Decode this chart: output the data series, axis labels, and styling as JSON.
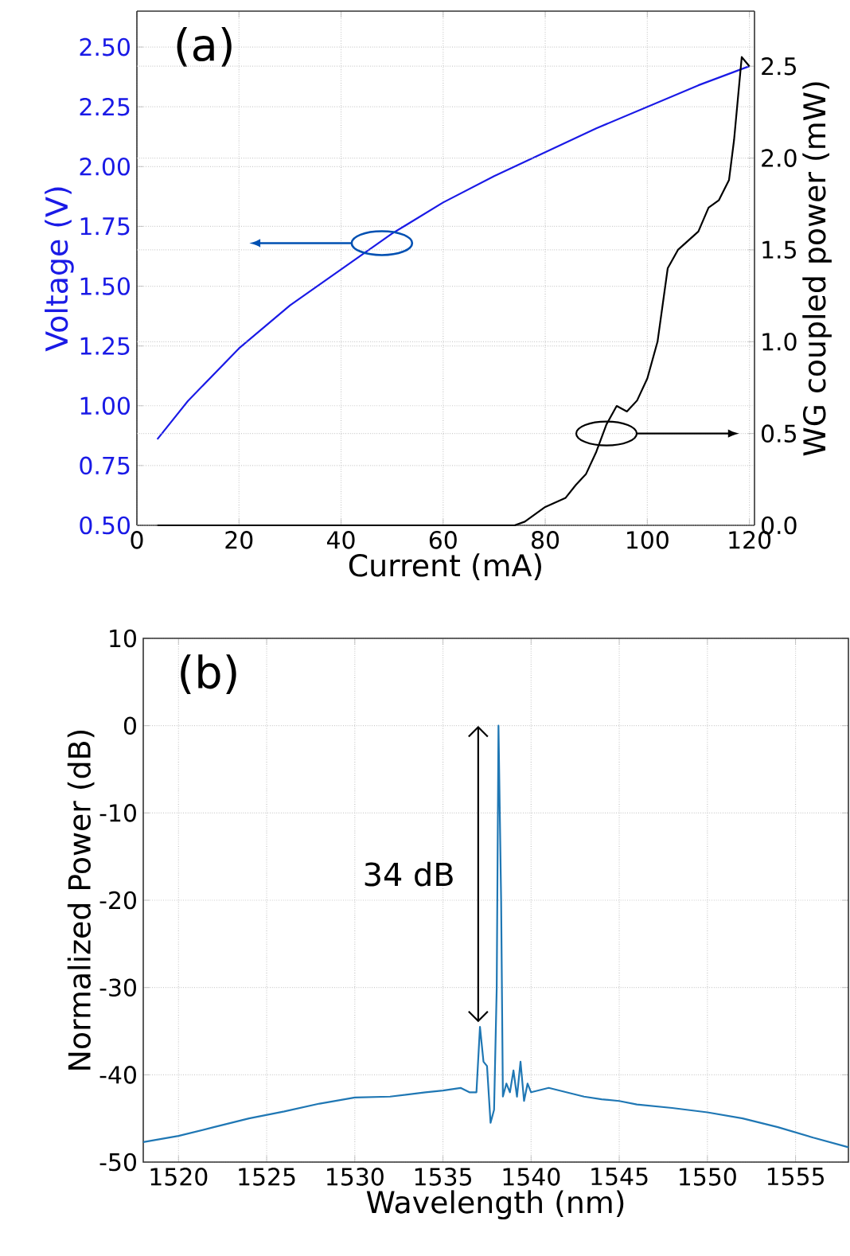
{
  "chart_data": [
    {
      "type": "line",
      "xlabel": "Current (mA)",
      "ylabel": "Voltage (V)",
      "y2label": "WG coupled power (mW)",
      "annotations": [
        "(a)"
      ],
      "grid": true,
      "xlim": [
        0,
        121
      ],
      "xticks": [
        0,
        20,
        40,
        60,
        80,
        100,
        120
      ],
      "ylim": [
        0.5,
        2.65
      ],
      "yticks": [
        {
          "value": 0.5,
          "label": "0.50"
        },
        {
          "value": 0.75,
          "label": "0.75"
        },
        {
          "value": 1.0,
          "label": "1.00"
        },
        {
          "value": 1.25,
          "label": "1.25"
        },
        {
          "value": 1.5,
          "label": "1.50"
        },
        {
          "value": 1.75,
          "label": "1.75"
        },
        {
          "value": 2.0,
          "label": "2.00"
        },
        {
          "value": 2.25,
          "label": "2.25"
        },
        {
          "value": 2.5,
          "label": "2.50"
        }
      ],
      "y2lim": [
        0,
        2.8
      ],
      "y2ticks": [
        {
          "value": 0,
          "label": "0.0"
        },
        {
          "value": 0.5,
          "label": "0.5"
        },
        {
          "value": 1.0,
          "label": "1.0"
        },
        {
          "value": 1.5,
          "label": "1.5"
        },
        {
          "value": 2.0,
          "label": "2.0"
        },
        {
          "value": 2.5,
          "label": "2.5"
        }
      ],
      "series": [
        {
          "color": "#1a1ae6",
          "x": [
            4,
            10,
            20,
            30,
            40,
            50,
            60,
            70,
            80,
            90,
            100,
            110,
            120
          ],
          "values": [
            0.86,
            1.02,
            1.24,
            1.42,
            1.57,
            1.72,
            1.85,
            1.96,
            2.06,
            2.16,
            2.25,
            2.34,
            2.42
          ]
        },
        {
          "color": "#000000",
          "axis": "y2",
          "x": [
            4,
            74,
            76,
            80,
            84,
            86,
            88,
            90,
            92,
            94,
            96,
            98,
            100,
            102,
            104,
            106,
            108,
            110,
            112,
            114,
            116,
            117,
            118.5,
            120
          ],
          "values": [
            0,
            0,
            0.02,
            0.1,
            0.15,
            0.22,
            0.28,
            0.4,
            0.55,
            0.65,
            0.62,
            0.68,
            0.8,
            1.0,
            1.4,
            1.5,
            1.55,
            1.6,
            1.73,
            1.77,
            1.88,
            2.1,
            2.55,
            2.5
          ]
        }
      ]
    },
    {
      "type": "line",
      "xlabel": "Wavelength (nm)",
      "ylabel": "Normalized Power (dB)",
      "annotations": [
        "(b)",
        "34 dB"
      ],
      "grid": true,
      "xlim": [
        1518,
        1558
      ],
      "xticks": [
        1520,
        1525,
        1530,
        1535,
        1540,
        1545,
        1550,
        1555
      ],
      "ylim": [
        -50,
        10
      ],
      "yticks": [
        -50,
        -40,
        -30,
        -20,
        -10,
        0,
        10
      ],
      "series": [
        {
          "color": "#1f77b4",
          "x": [
            1518,
            1520,
            1522,
            1524,
            1526,
            1528,
            1530,
            1532,
            1534,
            1535,
            1536,
            1536.5,
            1536.9,
            1537.1,
            1537.3,
            1537.5,
            1537.7,
            1537.9,
            1538.05,
            1538.15,
            1538.3,
            1538.4,
            1538.6,
            1538.8,
            1539,
            1539.2,
            1539.4,
            1539.6,
            1539.8,
            1540,
            1541,
            1542,
            1543,
            1544,
            1545,
            1546,
            1548,
            1550,
            1552,
            1554,
            1556,
            1558
          ],
          "values": [
            -47.7,
            -47,
            -46,
            -45,
            -44.2,
            -43.3,
            -42.6,
            -42.5,
            -42,
            -41.8,
            -41.5,
            -42,
            -42,
            -34.5,
            -38.5,
            -39,
            -45.5,
            -44,
            -30,
            0,
            -20,
            -42.5,
            -41,
            -42,
            -39.5,
            -42.5,
            -38.5,
            -43,
            -41,
            -42,
            -41.5,
            -42,
            -42.5,
            -42.8,
            -43,
            -43.4,
            -43.8,
            -44.3,
            -45,
            -46,
            -47.2,
            -48.3
          ]
        }
      ]
    }
  ]
}
